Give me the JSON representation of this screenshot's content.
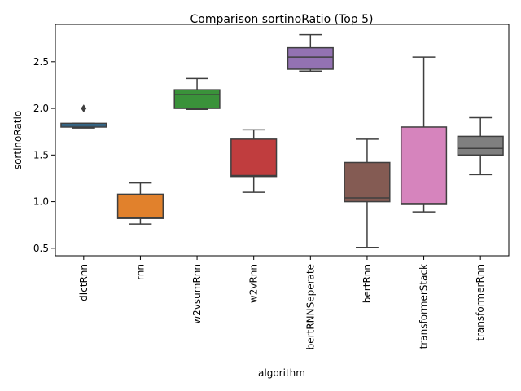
{
  "chart_data": {
    "type": "box",
    "title": "Comparison sortinoRatio (Top 5)",
    "xlabel": "algorithm",
    "ylabel": "sortinoRatio",
    "ylim": [
      0.42,
      2.9
    ],
    "yticks": [
      0.5,
      1.0,
      1.5,
      2.0,
      2.5
    ],
    "ytick_labels": [
      "0.5",
      "1.0",
      "1.5",
      "2.0",
      "2.5"
    ],
    "grid": false,
    "categories": [
      "dictRnn",
      "rnn",
      "w2vsumRnn",
      "w2vRnn",
      "bertRNNSeperate",
      "bertRnn",
      "transformerStack",
      "transformerRnn"
    ],
    "series": [
      {
        "whisker_low": 1.79,
        "q1": 1.8,
        "median": 1.82,
        "q3": 1.84,
        "whisker_high": 1.84,
        "outliers": [
          2.0
        ],
        "color": "#3274a1"
      },
      {
        "whisker_low": 0.76,
        "q1": 0.82,
        "median": 0.83,
        "q3": 1.08,
        "whisker_high": 1.2,
        "outliers": [],
        "color": "#e1812c"
      },
      {
        "whisker_low": 1.99,
        "q1": 2.0,
        "median": 2.15,
        "q3": 2.2,
        "whisker_high": 2.32,
        "outliers": [],
        "color": "#3a923a"
      },
      {
        "whisker_low": 1.1,
        "q1": 1.27,
        "median": 1.28,
        "q3": 1.67,
        "whisker_high": 1.77,
        "outliers": [],
        "color": "#c03d3e"
      },
      {
        "whisker_low": 2.4,
        "q1": 2.42,
        "median": 2.55,
        "q3": 2.65,
        "whisker_high": 2.79,
        "outliers": [],
        "color": "#9372b2"
      },
      {
        "whisker_low": 0.51,
        "q1": 1.0,
        "median": 1.04,
        "q3": 1.42,
        "whisker_high": 1.67,
        "outliers": [],
        "color": "#845b53"
      },
      {
        "whisker_low": 0.89,
        "q1": 0.97,
        "median": 0.98,
        "q3": 1.8,
        "whisker_high": 2.55,
        "outliers": [],
        "color": "#d684bd"
      },
      {
        "whisker_low": 1.29,
        "q1": 1.5,
        "median": 1.57,
        "q3": 1.7,
        "whisker_high": 1.9,
        "outliers": [],
        "color": "#7f7f7f"
      }
    ]
  }
}
